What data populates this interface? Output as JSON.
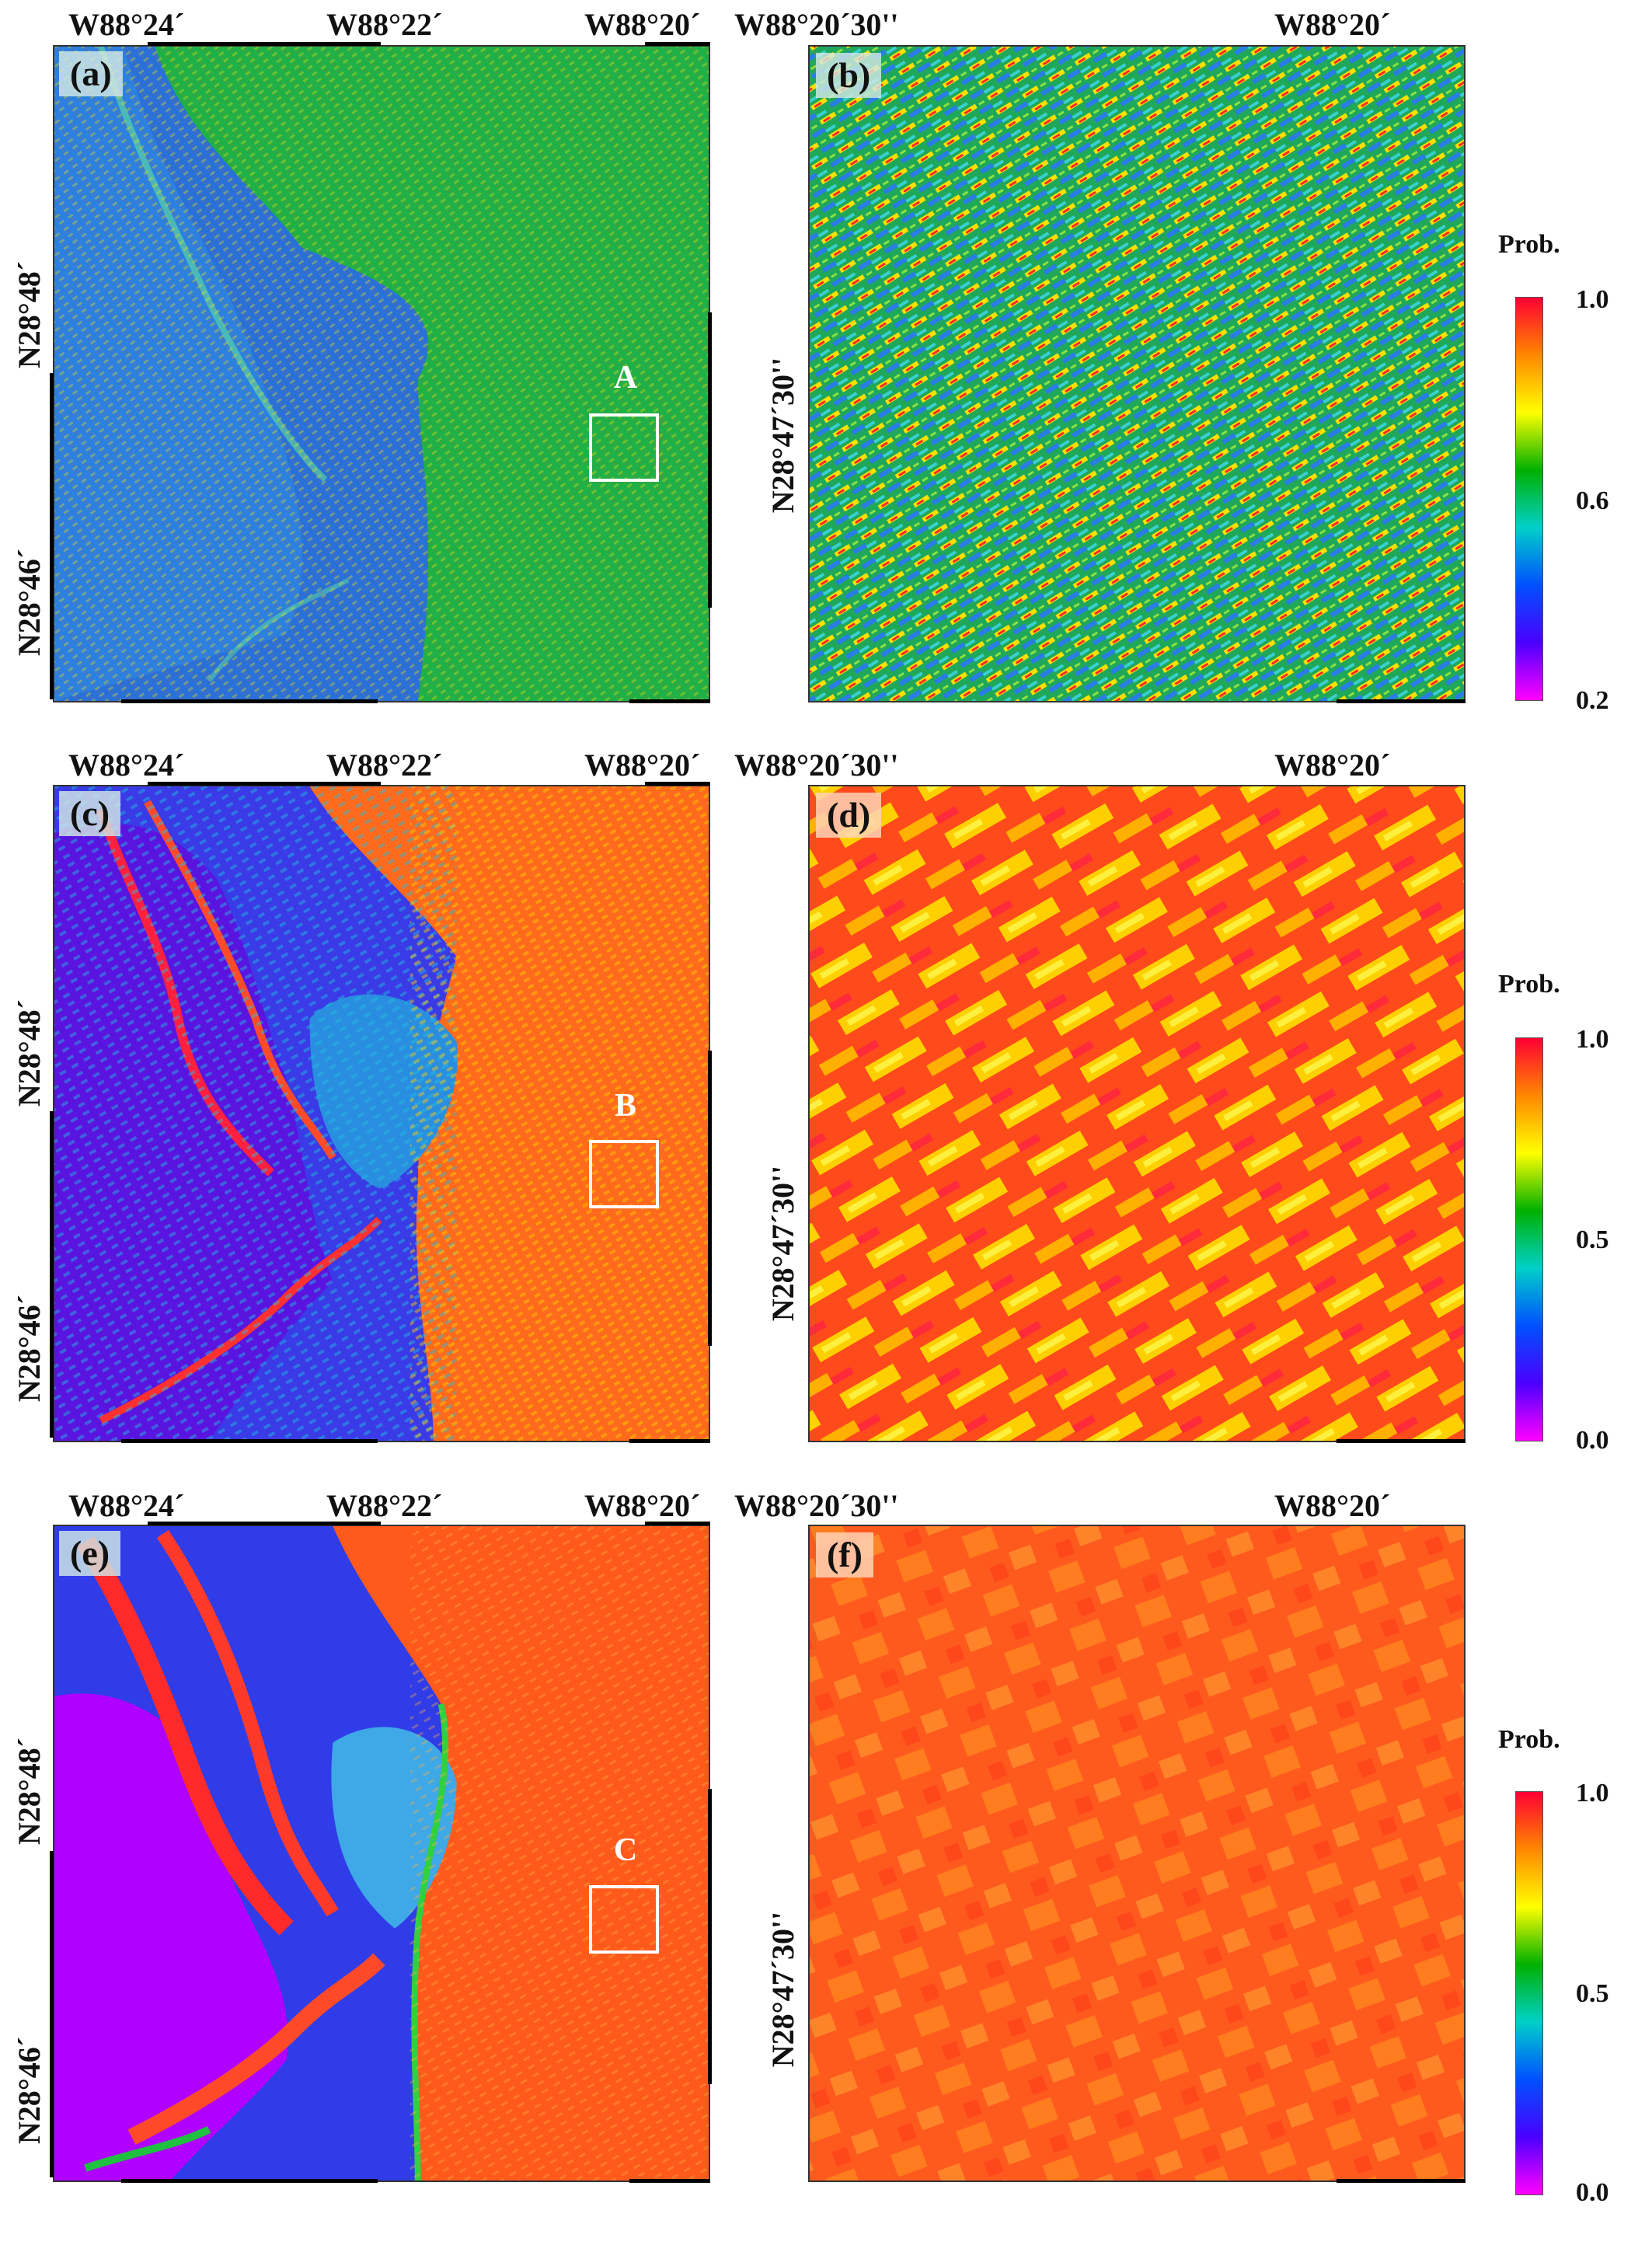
{
  "figure": {
    "rows": [
      {
        "left_panel": {
          "tag": "(a)",
          "lon_ticks": [
            "W88°24´",
            "W88°22´",
            "W88°20´"
          ],
          "lat_ticks": [
            "N28°48´",
            "N28°46´"
          ],
          "box_label": "A"
        },
        "right_panel": {
          "tag": "(b)",
          "lon_ticks": [
            "W88°20´30''",
            "W88°20´"
          ],
          "lat_ticks": [
            "N28°47´30''"
          ]
        },
        "legend": {
          "title": "Prob.",
          "ticks": [
            "1.0",
            "0.6",
            "0.2"
          ]
        }
      },
      {
        "left_panel": {
          "tag": "(c)",
          "lon_ticks": [
            "W88°24´",
            "W88°22´",
            "W88°20´"
          ],
          "lat_ticks": [
            "N28°48´",
            "N28°46´"
          ],
          "box_label": "B"
        },
        "right_panel": {
          "tag": "(d)",
          "lon_ticks": [
            "W88°20´30''",
            "W88°20´"
          ],
          "lat_ticks": [
            "N28°47´30''"
          ]
        },
        "legend": {
          "title": "Prob.",
          "ticks": [
            "1.0",
            "0.5",
            "0.0"
          ]
        }
      },
      {
        "left_panel": {
          "tag": "(e)",
          "lon_ticks": [
            "W88°24´",
            "W88°22´",
            "W88°20´"
          ],
          "lat_ticks": [
            "N28°48´",
            "N28°46´"
          ],
          "box_label": "C"
        },
        "right_panel": {
          "tag": "(f)",
          "lon_ticks": [
            "W88°20´30''",
            "W88°20´"
          ],
          "lat_ticks": [
            "N28°47´30''"
          ]
        },
        "legend": {
          "title": "Prob.",
          "ticks": [
            "1.0",
            "0.5",
            "0.0"
          ]
        }
      }
    ],
    "colormap": [
      "#ff00ff",
      "#4a00ff",
      "#0050ff",
      "#00d0c8",
      "#00b000",
      "#ffff00",
      "#ff8800",
      "#ff0033"
    ]
  }
}
